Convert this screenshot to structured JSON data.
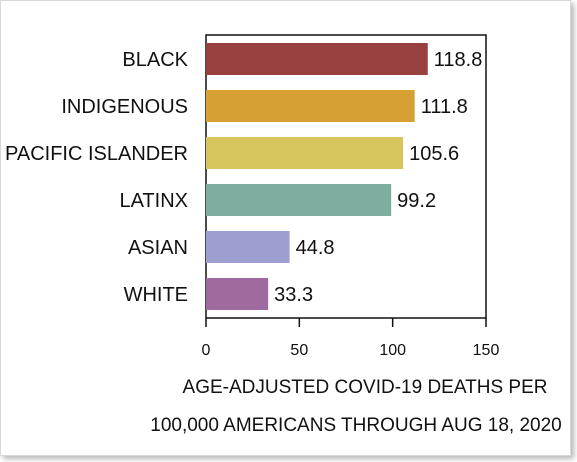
{
  "chart_data": {
    "type": "bar",
    "orientation": "horizontal",
    "categories": [
      "BLACK",
      "INDIGENOUS",
      "PACIFIC ISLANDER",
      "LATINX",
      "ASIAN",
      "WHITE"
    ],
    "values": [
      118.8,
      111.8,
      105.6,
      99.2,
      44.8,
      33.3
    ],
    "value_labels": [
      "118.8",
      "111.8",
      "105.6",
      "99.2",
      "44.8",
      "33.3"
    ],
    "colors": [
      "#983f40",
      "#d6a035",
      "#d6c55d",
      "#7fada0",
      "#9d9fd1",
      "#9f6b9e"
    ],
    "xlabel_lines": [
      "AGE-ADJUSTED COVID-19 DEATHS PER",
      "100,000 AMERICANS THROUGH AUG 18, 2020"
    ],
    "xlim": [
      0,
      150
    ],
    "xticks": [
      0,
      50,
      100,
      150
    ],
    "xtick_labels": [
      "0",
      "50",
      "100",
      "150"
    ],
    "grid": false,
    "legend": "none"
  }
}
